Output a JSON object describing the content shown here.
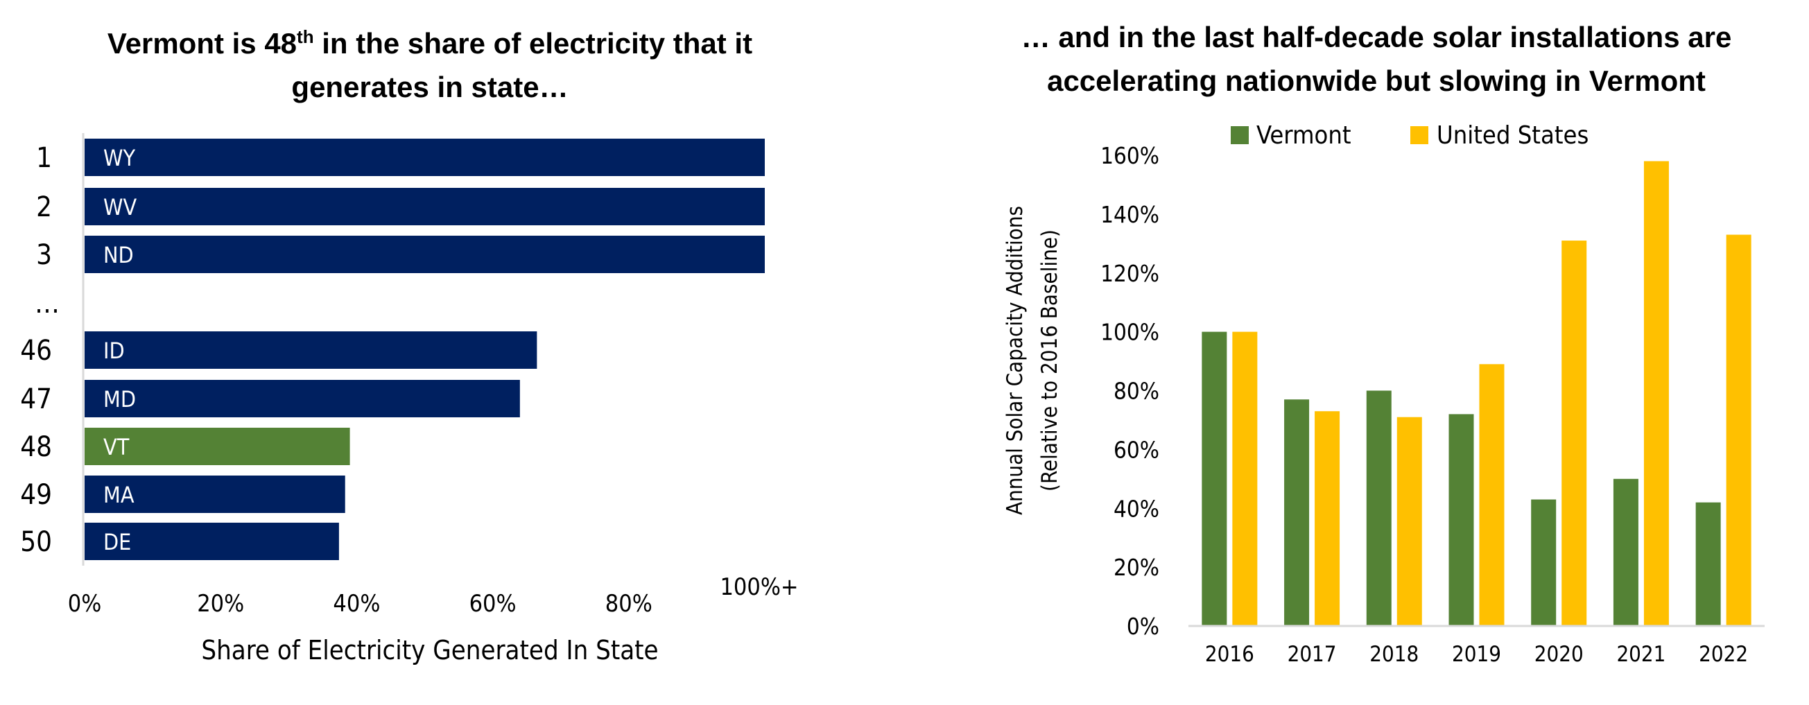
{
  "colors": {
    "navy": "#002060",
    "vermont_green": "#548235",
    "us_yellow": "#FFC000",
    "axis": "#D9D9D9"
  },
  "left_title": {
    "before": "Vermont is 48",
    "sup": "th",
    "after": " in the share of electricity that it",
    "line2": "generates in state…"
  },
  "right_title": {
    "line1": "… and in the last half-decade solar installations are",
    "line2": "accelerating nationwide but slowing in Vermont"
  },
  "chart_data": [
    {
      "type": "bar",
      "orientation": "horizontal",
      "xlabel": "Share of Electricity Generated In State",
      "ylabel": "",
      "xlim": [
        0,
        100
      ],
      "x_ticks": [
        "0%",
        "20%",
        "40%",
        "60%",
        "80%",
        "100%+"
      ],
      "rows": [
        {
          "rank": "1",
          "state": "WY",
          "value": 100,
          "highlight": false
        },
        {
          "rank": "2",
          "state": "WV",
          "value": 100,
          "highlight": false
        },
        {
          "rank": "3",
          "state": "ND",
          "value": 100,
          "highlight": false
        },
        {
          "rank": "…",
          "state": "",
          "value": null,
          "highlight": false
        },
        {
          "rank": "46",
          "state": "ID",
          "value": 66.5,
          "highlight": false
        },
        {
          "rank": "47",
          "state": "MD",
          "value": 64,
          "highlight": false
        },
        {
          "rank": "48",
          "state": "VT",
          "value": 39,
          "highlight": true
        },
        {
          "rank": "49",
          "state": "MA",
          "value": 38.3,
          "highlight": false
        },
        {
          "rank": "50",
          "state": "DE",
          "value": 37.4,
          "highlight": false
        }
      ],
      "grid": false
    },
    {
      "type": "bar",
      "categories": [
        "2016",
        "2017",
        "2018",
        "2019",
        "2020",
        "2021",
        "2022"
      ],
      "series": [
        {
          "name": "Vermont",
          "values": [
            100,
            77,
            80,
            72,
            43,
            50,
            42
          ]
        },
        {
          "name": "United States",
          "values": [
            100,
            73,
            71,
            89,
            131,
            158,
            133
          ]
        }
      ],
      "ylabel_line1": "Annual  Solar  Capacity Additions",
      "ylabel_line2": "(Relative to 2016 Baseline)",
      "xlabel": "",
      "ylim": [
        0,
        160
      ],
      "y_ticks": [
        "0%",
        "20%",
        "40%",
        "60%",
        "80%",
        "100%",
        "120%",
        "140%",
        "160%"
      ],
      "legend": "top",
      "grid": false
    }
  ]
}
